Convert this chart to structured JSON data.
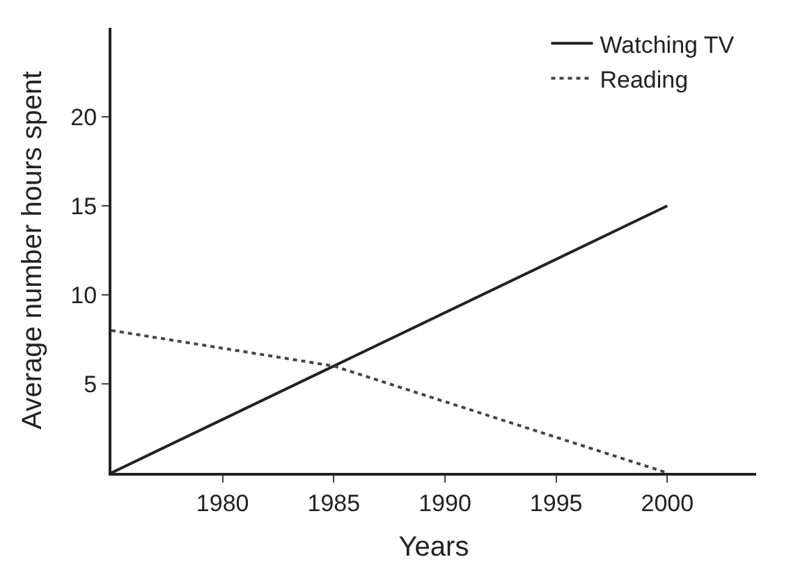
{
  "chart_data": {
    "type": "line",
    "xlabel": "Years",
    "ylabel": "Average number hours spent",
    "x": [
      1975,
      1985,
      2000
    ],
    "series": [
      {
        "name": "Watching TV",
        "color": "#222222",
        "values": [
          0,
          6,
          15
        ],
        "line_style": "solid"
      },
      {
        "name": "Reading",
        "color": "#444444",
        "values": [
          8,
          6,
          0
        ],
        "line_style": "dotted"
      }
    ],
    "xlim": [
      1975,
      2004
    ],
    "xticks": [
      1980,
      1985,
      1990,
      1995,
      2000
    ],
    "ylim": [
      0,
      25
    ],
    "yticks": [
      5,
      10,
      15,
      20
    ],
    "legend": "top right",
    "marker": "none"
  }
}
